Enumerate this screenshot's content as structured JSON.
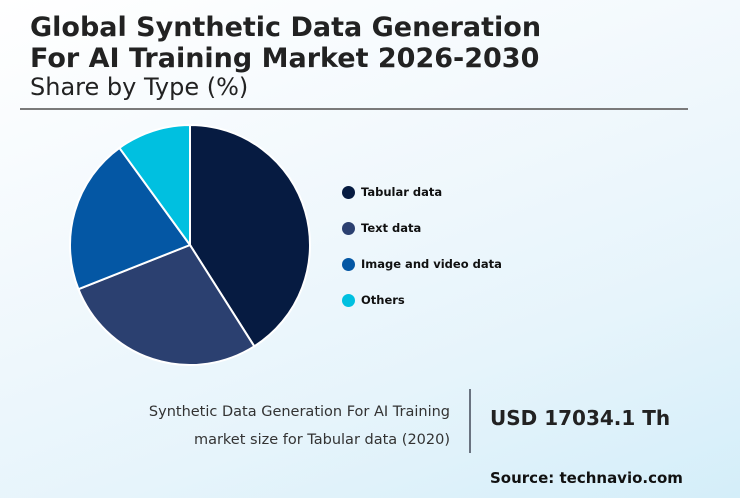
{
  "header": {
    "title_line1": "Global Synthetic Data Generation",
    "title_line2": "For AI Training Market 2026-2030",
    "subtitle": "Share by Type (%)"
  },
  "legend": [
    {
      "label": "Tabular data",
      "color": "#061b41"
    },
    {
      "label": "Text data",
      "color": "#2b4070"
    },
    {
      "label": "Image and video data",
      "color": "#0457a4"
    },
    {
      "label": "Others",
      "color": "#00c0e0"
    }
  ],
  "footer": {
    "desc_line1": "Synthetic Data Generation For AI Training",
    "desc_line2": "market size for Tabular data (2020)",
    "value": "USD 17034.1 Th",
    "source": "Source: technavio.com"
  },
  "chart_data": {
    "type": "pie",
    "title": "Global Synthetic Data Generation For AI Training Market 2026-2030",
    "subtitle": "Share by Type (%)",
    "categories": [
      "Tabular data",
      "Text data",
      "Image and video data",
      "Others"
    ],
    "values": [
      41,
      28,
      21,
      10
    ],
    "colors": [
      "#061b41",
      "#2b4070",
      "#0457a4",
      "#00c0e0"
    ],
    "start_angle": "12 o'clock, clockwise",
    "legend_position": "right"
  }
}
